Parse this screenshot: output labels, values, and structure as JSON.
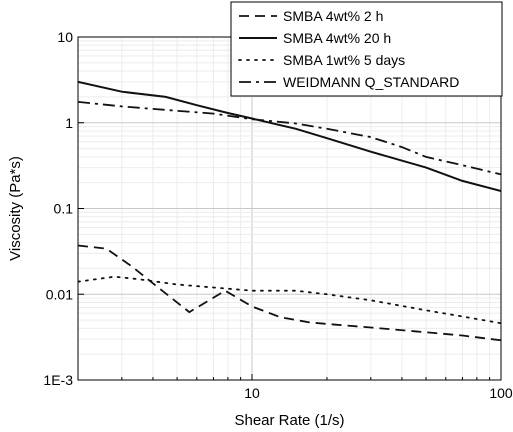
{
  "chart_data": {
    "type": "line",
    "xlabel": "Shear Rate (1/s)",
    "ylabel": "Viscosity (Pa*s)",
    "x_scale": "log",
    "y_scale": "log",
    "xlim": [
      2,
      100
    ],
    "ylim": [
      0.001,
      10
    ],
    "x_ticks": [
      {
        "value": 10,
        "label": "10"
      },
      {
        "value": 100,
        "label": "100"
      }
    ],
    "y_ticks": [
      {
        "value": 0.001,
        "label": "1E-3"
      },
      {
        "value": 0.01,
        "label": "0.01"
      },
      {
        "value": 0.1,
        "label": "0.1"
      },
      {
        "value": 1,
        "label": "1"
      },
      {
        "value": 10,
        "label": "10"
      }
    ],
    "grid": true,
    "legend_position": "top-right",
    "series": [
      {
        "name": "SMBA 4wt% 2 h",
        "dash": "dashed",
        "x": [
          2,
          2.6,
          3.3,
          4.2,
          5.6,
          7.8,
          10,
          13,
          17,
          22,
          30,
          45,
          70,
          100
        ],
        "y": [
          0.037,
          0.034,
          0.021,
          0.012,
          0.0062,
          0.011,
          0.0072,
          0.0054,
          0.0047,
          0.0044,
          0.0041,
          0.0037,
          0.0033,
          0.0029
        ]
      },
      {
        "name": "SMBA 4wt% 20 h",
        "dash": "solid",
        "x": [
          2,
          3,
          4.5,
          6,
          8,
          10,
          15,
          20,
          30,
          50,
          70,
          100
        ],
        "y": [
          3.0,
          2.3,
          2.0,
          1.6,
          1.3,
          1.12,
          0.85,
          0.66,
          0.46,
          0.3,
          0.21,
          0.16
        ]
      },
      {
        "name": "SMBA 1wt% 5 days",
        "dash": "dotted",
        "x": [
          2,
          2.8,
          3.5,
          5,
          7,
          10,
          15,
          20,
          30,
          50,
          70,
          100
        ],
        "y": [
          0.014,
          0.016,
          0.015,
          0.013,
          0.012,
          0.011,
          0.011,
          0.01,
          0.0085,
          0.0065,
          0.0055,
          0.0046
        ]
      },
      {
        "name": "WEIDMANN Q_STANDARD",
        "dash": "dashdot",
        "x": [
          2,
          3,
          5,
          7,
          10,
          15,
          20,
          30,
          40,
          50,
          70,
          100
        ],
        "y": [
          1.75,
          1.55,
          1.38,
          1.28,
          1.1,
          0.98,
          0.85,
          0.68,
          0.52,
          0.4,
          0.32,
          0.25
        ]
      }
    ]
  }
}
